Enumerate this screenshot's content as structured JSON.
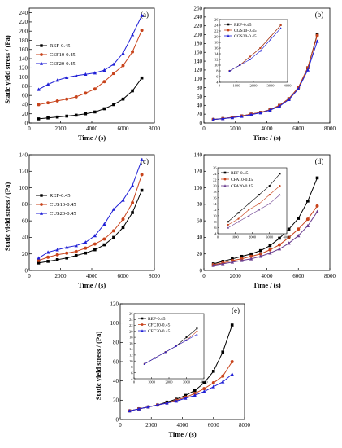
{
  "colors": {
    "black": "#000000",
    "orange": "#c8431b",
    "blue": "#1f1fd6",
    "purple": "#6a3d8f"
  },
  "chart_data": [
    {
      "type": "line",
      "panel": "(a)",
      "xlabel": "Time / (s)",
      "ylabel": "Static yield stress / (Pa)",
      "xlim": [
        0,
        8000
      ],
      "ylim": [
        0,
        250
      ],
      "xticks": [
        0,
        2000,
        4000,
        6000,
        8000
      ],
      "yticks": [
        0,
        20,
        40,
        60,
        80,
        100,
        120,
        140,
        160,
        180,
        200,
        220,
        240
      ],
      "legend_position": "middle-left",
      "series": [
        {
          "name": "REF-0.45",
          "color": "black",
          "marker": "square",
          "x": [
            600,
            1200,
            1800,
            2400,
            3000,
            3600,
            4200,
            4800,
            5400,
            6000,
            6600,
            7200
          ],
          "y": [
            9,
            11,
            13,
            15,
            17,
            20,
            24,
            31,
            40,
            52,
            70,
            98
          ]
        },
        {
          "name": "CSF10-0.45",
          "color": "orange",
          "marker": "circle",
          "x": [
            600,
            1200,
            1800,
            2400,
            3000,
            3600,
            4200,
            4800,
            5400,
            6000,
            6600,
            7200
          ],
          "y": [
            40,
            44,
            48,
            52,
            57,
            65,
            74,
            90,
            108,
            125,
            155,
            202
          ]
        },
        {
          "name": "CSF20-0.45",
          "color": "blue",
          "marker": "triangle",
          "x": [
            600,
            1200,
            1800,
            2400,
            3000,
            3600,
            4200,
            4800,
            5400,
            6000,
            6600,
            7200
          ],
          "y": [
            73,
            84,
            93,
            99,
            103,
            106,
            109,
            115,
            128,
            152,
            192,
            234
          ]
        }
      ]
    },
    {
      "type": "line",
      "panel": "(b)",
      "xlabel": "Time / (s)",
      "ylabel": "",
      "xlim": [
        0,
        8000
      ],
      "ylim": [
        0,
        260
      ],
      "xticks": [
        0,
        2000,
        4000,
        6000,
        8000
      ],
      "yticks": [
        0,
        20,
        40,
        60,
        80,
        100,
        120,
        140,
        160,
        180,
        200,
        220,
        240,
        260
      ],
      "series": [
        {
          "name": "REF-0.45",
          "color": "black",
          "marker": "square",
          "x": [
            600,
            1200,
            1800,
            2400,
            3000,
            3600,
            4200,
            4800,
            5400,
            6000,
            6600,
            7200
          ],
          "y": [
            8,
            10,
            13,
            16,
            20,
            24,
            30,
            40,
            55,
            80,
            125,
            200
          ]
        },
        {
          "name": "CGS10-0.45",
          "color": "orange",
          "marker": "circle",
          "x": [
            600,
            1200,
            1800,
            2400,
            3000,
            3600,
            4200,
            4800,
            5400,
            6000,
            6600,
            7200
          ],
          "y": [
            8,
            10,
            13,
            16,
            20,
            24,
            30,
            40,
            55,
            80,
            125,
            198
          ]
        },
        {
          "name": "CGS20-0.45",
          "color": "blue",
          "marker": "triangle",
          "x": [
            600,
            1200,
            1800,
            2400,
            3000,
            3600,
            4200,
            4800,
            5400,
            6000,
            6600,
            7200
          ],
          "y": [
            8,
            10,
            12,
            15,
            19,
            23,
            29,
            38,
            53,
            77,
            120,
            185
          ]
        }
      ],
      "inset": {
        "xlim": [
          0,
          4000
        ],
        "ylim": [
          4,
          26
        ],
        "xticks": [
          0,
          1000,
          2000,
          3000,
          4000
        ],
        "yticks": [
          4,
          6,
          8,
          10,
          12,
          14,
          16,
          18,
          20,
          22,
          24,
          26
        ],
        "legend_position": "top-left"
      }
    },
    {
      "type": "line",
      "panel": "(c)",
      "xlabel": "Time / (s)",
      "ylabel": "Static yield stress / (Pa)",
      "xlim": [
        0,
        8000
      ],
      "ylim": [
        0,
        140
      ],
      "xticks": [
        0,
        2000,
        4000,
        6000,
        8000
      ],
      "yticks": [
        0,
        20,
        40,
        60,
        80,
        100,
        120,
        140
      ],
      "legend_position": "middle-left",
      "series": [
        {
          "name": "REF-0.45",
          "color": "black",
          "marker": "square",
          "x": [
            600,
            1200,
            1800,
            2400,
            3000,
            3600,
            4200,
            4800,
            5400,
            6000,
            6600,
            7200
          ],
          "y": [
            9,
            11,
            13,
            15,
            18,
            21,
            25,
            31,
            40,
            52,
            70,
            97
          ]
        },
        {
          "name": "CUS10-0.45",
          "color": "orange",
          "marker": "circle",
          "x": [
            600,
            1200,
            1800,
            2400,
            3000,
            3600,
            4200,
            4800,
            5400,
            6000,
            6600,
            7200
          ],
          "y": [
            12,
            16,
            19,
            21,
            23,
            27,
            32,
            38,
            48,
            62,
            82,
            116
          ]
        },
        {
          "name": "CUS20-0.45",
          "color": "blue",
          "marker": "triangle",
          "x": [
            600,
            1200,
            1800,
            2400,
            3000,
            3600,
            4200,
            4800,
            5400,
            6000,
            6600,
            7200
          ],
          "y": [
            15,
            22,
            25,
            28,
            30,
            34,
            42,
            56,
            74,
            85,
            103,
            134
          ]
        }
      ]
    },
    {
      "type": "line",
      "panel": "(d)",
      "xlabel": "Time / (s)",
      "ylabel": "",
      "xlim": [
        0,
        8000
      ],
      "ylim": [
        0,
        140
      ],
      "xticks": [
        0,
        2000,
        4000,
        6000,
        8000
      ],
      "yticks": [
        0,
        20,
        40,
        60,
        80,
        100,
        120,
        140
      ],
      "series": [
        {
          "name": "REF-0.45",
          "color": "black",
          "marker": "square",
          "x": [
            600,
            1200,
            1800,
            2400,
            3000,
            3600,
            4200,
            4800,
            5400,
            6000,
            6600,
            7200
          ],
          "y": [
            8,
            11,
            14,
            17,
            20,
            24,
            30,
            39,
            50,
            63,
            84,
            112
          ]
        },
        {
          "name": "CFA10-0.45",
          "color": "orange",
          "marker": "circle",
          "x": [
            600,
            1200,
            1800,
            2400,
            3000,
            3600,
            4200,
            4800,
            5400,
            6000,
            6600,
            7200
          ],
          "y": [
            7,
            9,
            12,
            14,
            17,
            20,
            25,
            31,
            40,
            50,
            62,
            78
          ]
        },
        {
          "name": "CFA20-0.45",
          "color": "purple",
          "marker": "triangle",
          "x": [
            600,
            1200,
            1800,
            2400,
            3000,
            3600,
            4200,
            4800,
            5400,
            6000,
            6600,
            7200
          ],
          "y": [
            6,
            8,
            10,
            12,
            14,
            17,
            21,
            26,
            33,
            42,
            54,
            71
          ]
        }
      ],
      "inset": {
        "xlim": [
          0,
          4000
        ],
        "ylim": [
          4,
          26
        ],
        "xticks": [
          0,
          1000,
          2000,
          3000,
          4000
        ],
        "yticks": [
          4,
          6,
          8,
          10,
          12,
          14,
          16,
          18,
          20,
          22,
          24,
          26
        ],
        "legend_position": "top-left"
      }
    },
    {
      "type": "line",
      "panel": "(e)",
      "xlabel": "Time / (s)",
      "ylabel": "Static yield stress / (Pa)",
      "xlim": [
        0,
        8000
      ],
      "ylim": [
        0,
        120
      ],
      "xticks": [
        0,
        2000,
        4000,
        6000,
        8000
      ],
      "yticks": [
        0,
        20,
        40,
        60,
        80,
        100,
        120
      ],
      "series": [
        {
          "name": "REF-0.45",
          "color": "black",
          "marker": "square",
          "x": [
            600,
            1200,
            1800,
            2400,
            3000,
            3600,
            4200,
            4800,
            5400,
            6000,
            6600,
            7200
          ],
          "y": [
            9,
            11,
            13,
            15,
            18,
            21,
            25,
            30,
            38,
            50,
            70,
            98
          ]
        },
        {
          "name": "CFC10-0.45",
          "color": "orange",
          "marker": "circle",
          "x": [
            600,
            1200,
            1800,
            2400,
            3000,
            3600,
            4200,
            4800,
            5400,
            6000,
            6600,
            7200
          ],
          "y": [
            9,
            11,
            13,
            15,
            17,
            20,
            23,
            27,
            32,
            38,
            45,
            60
          ]
        },
        {
          "name": "CFC20-0.45",
          "color": "blue",
          "marker": "triangle",
          "x": [
            600,
            1200,
            1800,
            2400,
            3000,
            3600,
            4200,
            4800,
            5400,
            6000,
            6600,
            7200
          ],
          "y": [
            9,
            11,
            13,
            15,
            17,
            19,
            22,
            25,
            29,
            34,
            39,
            47
          ]
        }
      ],
      "inset": {
        "xlim": [
          0,
          4000
        ],
        "ylim": [
          4,
          26
        ],
        "xticks": [
          0,
          1000,
          2000,
          3000,
          4000
        ],
        "yticks": [
          4,
          6,
          8,
          10,
          12,
          14,
          16,
          18,
          20,
          22,
          24,
          26
        ],
        "legend_position": "top-left"
      }
    }
  ]
}
